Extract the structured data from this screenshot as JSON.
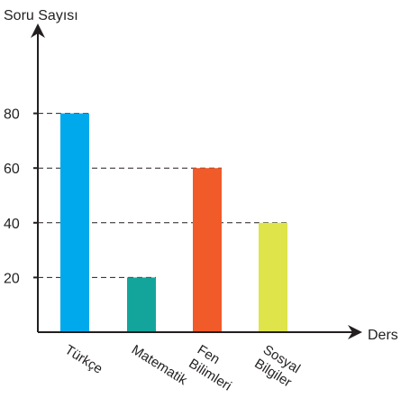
{
  "chart_data": {
    "type": "bar",
    "title": "",
    "ylabel": "Soru Sayısı",
    "xlabel": "Ders",
    "ylim": [
      0,
      80
    ],
    "yticks": [
      20,
      40,
      60,
      80
    ],
    "grid": "dashed reference lines to bar tops",
    "categories": [
      {
        "label_lines": [
          "Türkçe"
        ],
        "value": 80,
        "color": "#00a9ec"
      },
      {
        "label_lines": [
          "Matematik"
        ],
        "value": 20,
        "color": "#13a59b"
      },
      {
        "label_lines": [
          "Fen",
          "Bilimleri"
        ],
        "value": 60,
        "color": "#f15a29"
      },
      {
        "label_lines": [
          "Sosyal",
          "Bilgiler"
        ],
        "value": 40,
        "color": "#dee449"
      }
    ]
  }
}
